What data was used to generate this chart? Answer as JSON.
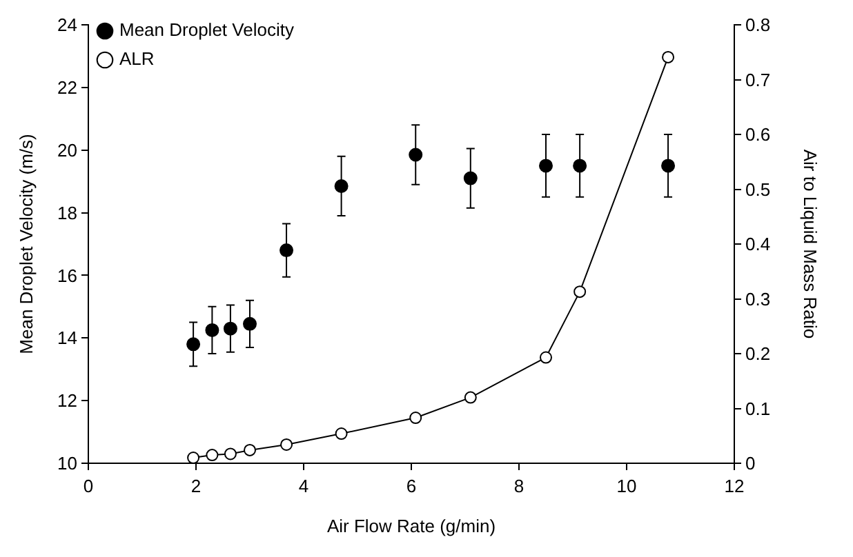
{
  "chart_data": {
    "type": "scatter",
    "xlabel": "Air Flow Rate (g/min)",
    "ylabel": "Mean Droplet Velocity (m/s)",
    "y2label": "Air to Liquid Mass Ratio",
    "xlim": [
      0,
      12
    ],
    "xticks": [
      0,
      2,
      4,
      6,
      8,
      10,
      12
    ],
    "ylim": [
      10,
      24
    ],
    "yticks": [
      10,
      12,
      14,
      16,
      18,
      20,
      22,
      24
    ],
    "y2lim": [
      0,
      0.8
    ],
    "y2ticks": [
      0,
      0.1,
      0.2,
      0.3,
      0.4,
      0.5,
      0.6,
      0.7,
      0.8
    ],
    "grid": false,
    "legend": "top left",
    "series": [
      {
        "name": "Mean Droplet Velocity",
        "type": "scatter",
        "color": "#000000",
        "marker": "circle",
        "x": [
          1.95,
          2.3,
          2.64,
          3.0,
          3.68,
          4.7,
          6.08,
          7.1,
          8.5,
          9.13,
          10.77
        ],
        "values": [
          13.8,
          14.25,
          14.3,
          14.45,
          16.8,
          18.85,
          19.85,
          19.1,
          19.5,
          19.5,
          19.5
        ],
        "errors": [
          0.7,
          0.75,
          0.75,
          0.75,
          0.85,
          0.95,
          0.95,
          0.95,
          1.0,
          1.0,
          1.0
        ]
      },
      {
        "name": "ALR",
        "type": "line",
        "axis": "y2",
        "color": "#000000",
        "marker": "circle",
        "line_style": "solid",
        "x": [
          1.95,
          2.3,
          2.64,
          3.0,
          3.68,
          4.7,
          6.08,
          7.1,
          8.5,
          9.13,
          10.77
        ],
        "values": [
          0.01,
          0.015,
          0.017,
          0.024,
          0.034,
          0.054,
          0.083,
          0.12,
          0.193,
          0.313,
          0.741
        ]
      }
    ]
  }
}
